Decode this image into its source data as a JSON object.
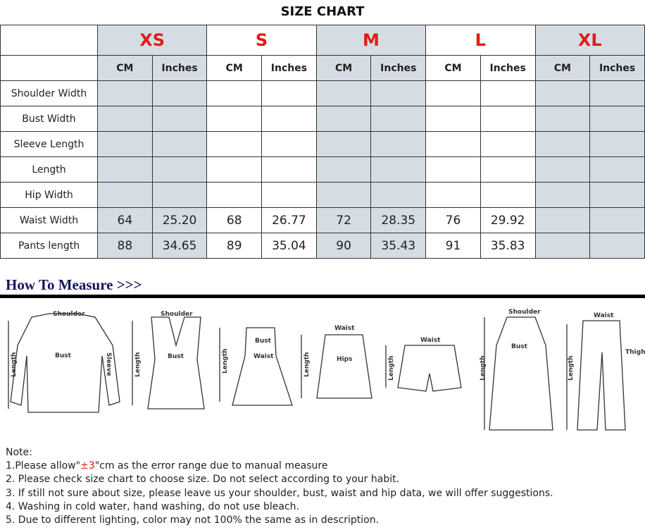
{
  "title": "SIZE CHART",
  "sizes": [
    "XS",
    "S",
    "M",
    "L",
    "XL"
  ],
  "units": [
    "CM",
    "Inches"
  ],
  "rows": [
    {
      "label": "Shoulder Width",
      "values": [
        "",
        "",
        "",
        "",
        "",
        "",
        "",
        "",
        "",
        ""
      ]
    },
    {
      "label": "Bust Width",
      "values": [
        "",
        "",
        "",
        "",
        "",
        "",
        "",
        "",
        "",
        ""
      ]
    },
    {
      "label": "Sleeve Length",
      "values": [
        "",
        "",
        "",
        "",
        "",
        "",
        "",
        "",
        "",
        ""
      ]
    },
    {
      "label": "Length",
      "values": [
        "",
        "",
        "",
        "",
        "",
        "",
        "",
        "",
        "",
        ""
      ]
    },
    {
      "label": "Hip Width",
      "values": [
        "",
        "",
        "",
        "",
        "",
        "",
        "",
        "",
        "",
        ""
      ]
    },
    {
      "label": "Waist Width",
      "values": [
        "64",
        "25.20",
        "68",
        "26.77",
        "72",
        "28.35",
        "76",
        "29.92",
        "",
        ""
      ]
    },
    {
      "label": "Pants length",
      "values": [
        "88",
        "34.65",
        "89",
        "35.04",
        "90",
        "35.43",
        "91",
        "35.83",
        "",
        ""
      ]
    }
  ],
  "how_to_measure": "How To Measure >>>",
  "illustration_labels": {
    "shoulder": "Shoulder",
    "bust": "Bust",
    "sleeve": "Sleeve",
    "length": "Length",
    "waist": "Waist",
    "hips": "Hips",
    "thigh": "Thigh"
  },
  "notes": {
    "heading": "Note:",
    "n1_pre": "1.Please allow\"",
    "n1_red": "±3",
    "n1_post": "\"cm as the error range due to manual measure",
    "n2": "2. Please check size chart to choose size. Do not select according to your habit.",
    "n3": "3. If still not sure about size, please leave us your shoulder, bust, waist and hip data, we will offer suggestions.",
    "n4": "4. Washing in cold water, hand washing, do not use bleach.",
    "n5": "5. Due to different lighting, color may not 100% the same as in description."
  },
  "colors": {
    "size_label": "#e41b17",
    "shaded_column": "#d6dce4",
    "heading": "#14145e"
  }
}
